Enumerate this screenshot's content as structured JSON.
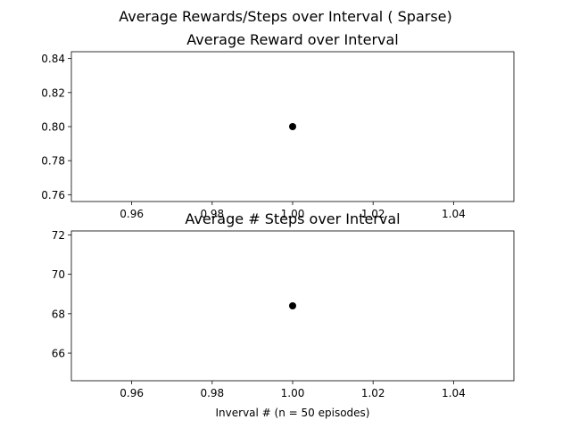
{
  "figure": {
    "suptitle": "Average Rewards/Steps over Interval ( Sparse)"
  },
  "chart_data": [
    {
      "type": "scatter",
      "title": "Average Reward over Interval",
      "xlabel": "",
      "ylabel": "",
      "x": [
        1.0
      ],
      "y": [
        0.8
      ],
      "xlim": [
        0.945,
        1.055
      ],
      "ylim": [
        0.756,
        0.844
      ],
      "xticks": [
        0.96,
        0.98,
        1.0,
        1.02,
        1.04
      ],
      "xtick_labels": [
        "0.96",
        "0.98",
        "1.00",
        "1.02",
        "1.04"
      ],
      "yticks": [
        0.76,
        0.78,
        0.8,
        0.82,
        0.84
      ],
      "ytick_labels": [
        "0.76",
        "0.78",
        "0.80",
        "0.82",
        "0.84"
      ],
      "grid": false,
      "marker_color": "#000000"
    },
    {
      "type": "scatter",
      "title": "Average # Steps over Interval",
      "xlabel": "Inverval # (n = 50 episodes)",
      "ylabel": "",
      "x": [
        1.0
      ],
      "y": [
        68.4
      ],
      "xlim": [
        0.945,
        1.055
      ],
      "ylim": [
        64.6,
        72.2
      ],
      "xticks": [
        0.96,
        0.98,
        1.0,
        1.02,
        1.04
      ],
      "xtick_labels": [
        "0.96",
        "0.98",
        "1.00",
        "1.02",
        "1.04"
      ],
      "yticks": [
        66,
        68,
        70,
        72
      ],
      "ytick_labels": [
        "66",
        "68",
        "70",
        "72"
      ],
      "grid": false,
      "marker_color": "#000000"
    }
  ]
}
